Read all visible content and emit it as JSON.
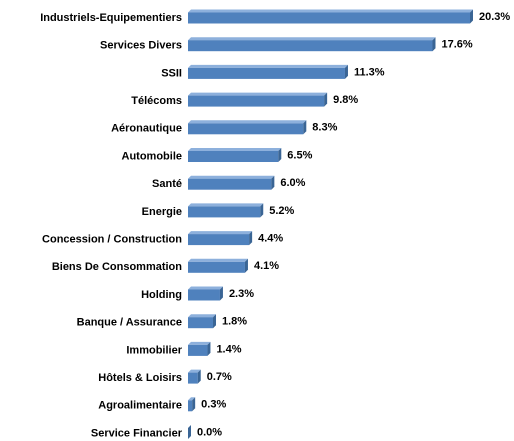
{
  "chart_data": {
    "type": "bar",
    "orientation": "horizontal",
    "color": "#4f81bd",
    "categories": [
      "Industriels-Equipementiers",
      "Services Divers",
      "SSII",
      "Télécoms",
      "Aéronautique",
      "Automobile",
      "Santé",
      "Energie",
      "Concession / Construction",
      "Biens De Consommation",
      "Holding",
      "Banque / Assurance",
      "Immobilier",
      "Hôtels & Loisirs",
      "Agroalimentaire",
      "Service Financier"
    ],
    "values": [
      20.3,
      17.6,
      11.3,
      9.8,
      8.3,
      6.5,
      6.0,
      5.2,
      4.4,
      4.1,
      2.3,
      1.8,
      1.4,
      0.7,
      0.3,
      0.0
    ],
    "value_labels": [
      "20.3%",
      "17.6%",
      "11.3%",
      "9.8%",
      "8.3%",
      "6.5%",
      "6.0%",
      "5.2%",
      "4.4%",
      "4.1%",
      "2.3%",
      "1.8%",
      "1.4%",
      "0.7%",
      "0.3%",
      "0.0%"
    ]
  }
}
